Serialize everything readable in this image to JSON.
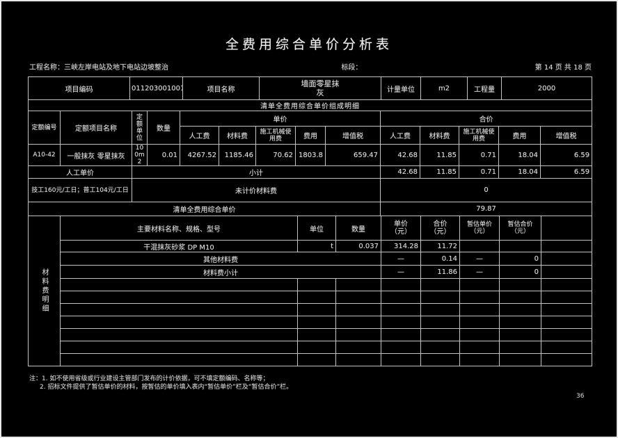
{
  "page": {
    "title": "全费用综合单价分析表",
    "project_label": "工程名称：三峡左岸电站及地下电站边坡整治",
    "section_label": "标段：",
    "page_info": "第 14 页  共 18 页",
    "page_number": "36"
  },
  "info": {
    "item_code_label": "项目编码",
    "item_code": "011203001001",
    "item_name_label": "项目名称",
    "item_name": "墙面零星抹灰",
    "unit_label": "计量单位",
    "unit": "m2",
    "quantity_label": "工程量",
    "quantity": "2000"
  },
  "composition": {
    "section_title": "清单全费用综合单价组成明细",
    "headers": {
      "quota_no": "定额编号",
      "quota_name": "定额项目名称",
      "quota_unit": "定额\n单位",
      "quantity": "数量",
      "unit_price_group": "单价",
      "total_price_group": "合价",
      "sub": [
        "人工费",
        "材料费",
        "施工机械使用费",
        "费用",
        "增值税"
      ]
    },
    "row": {
      "quota_no": "A10-42",
      "name": "一般抹灰 零星抹灰",
      "unit": "100m2",
      "quantity": "0.01",
      "unit_prices": [
        "4267.52",
        "1185.46",
        "70.62",
        "1803.8",
        "659.47"
      ],
      "total_prices": [
        "42.68",
        "11.85",
        "0.71",
        "18.04",
        "6.59"
      ]
    },
    "labor_row": {
      "label": "人工单价",
      "subtotal_label": "小计",
      "values": [
        "42.68",
        "11.85",
        "0.71",
        "18.04",
        "6.59"
      ]
    },
    "rate_row": {
      "label": "技工160元/工日；普工104元/工日",
      "center_label": "未计价材料费",
      "value": "0"
    },
    "total_row": {
      "label": "清单全费用综合单价",
      "value": "79.87"
    }
  },
  "materials": {
    "side_label": "材料费明细",
    "headers": {
      "name": "主要材料名称、规格、型号",
      "unit": "单位",
      "quantity": "数量",
      "price": "单价\n（元）",
      "total": "合价\n（元）",
      "est_price": "暂估单价\n（元）",
      "est_total": "暂估合价\n（元）"
    },
    "rows": [
      {
        "name": "干混抹灰砂浆 DP M10",
        "unit": "t",
        "quantity": "0.037",
        "price": "314.28",
        "total": "11.72",
        "est_price": "",
        "est_total": ""
      }
    ],
    "other_row": {
      "label": "其他材料费",
      "price": "—",
      "total": "0.14",
      "est_price": "—",
      "est_total": "0"
    },
    "subtotal_row": {
      "label": "材料费小计",
      "price": "—",
      "total": "11.86",
      "est_price": "—",
      "est_total": "0"
    },
    "empty_row_count": 7
  },
  "notes": {
    "line1": "注：1. 如不使用省级或行业建设主管部门发布的计价依据，可不填定额编码、名称等；",
    "line2": "2. 招标文件提供了暂估单价的材料，按暂估的单价填入表内“暂估单价”栏及“暂估合价”栏。"
  }
}
